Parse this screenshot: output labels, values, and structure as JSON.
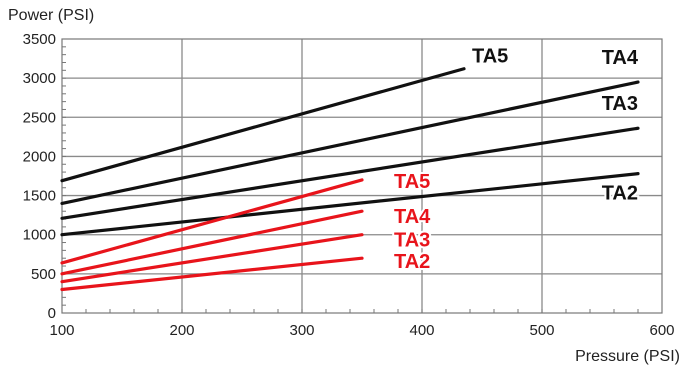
{
  "chart_data": {
    "type": "line",
    "xlabel": "Pressure (PSI)",
    "ylabel": "Power (PSI)",
    "xlim": [
      100,
      600
    ],
    "ylim": [
      0,
      3500
    ],
    "x_ticks": [
      100,
      200,
      300,
      400,
      500,
      600
    ],
    "y_ticks": [
      0,
      500,
      1000,
      1500,
      2000,
      2500,
      3000,
      3500
    ],
    "grid": true,
    "legend": "none",
    "series": [
      {
        "name": "TA5",
        "color": "#111111",
        "x": [
          100,
          435
        ],
        "y": [
          1690,
          3120
        ]
      },
      {
        "name": "TA4",
        "color": "#111111",
        "x": [
          100,
          580
        ],
        "y": [
          1400,
          2950
        ]
      },
      {
        "name": "TA3",
        "color": "#111111",
        "x": [
          100,
          580
        ],
        "y": [
          1210,
          2360
        ]
      },
      {
        "name": "TA2",
        "color": "#111111",
        "x": [
          100,
          580
        ],
        "y": [
          1000,
          1780
        ]
      },
      {
        "name": "TA5",
        "color": "#e8141b",
        "x": [
          100,
          350
        ],
        "y": [
          640,
          1700
        ]
      },
      {
        "name": "TA4",
        "color": "#e8141b",
        "x": [
          100,
          350
        ],
        "y": [
          500,
          1300
        ]
      },
      {
        "name": "TA3",
        "color": "#e8141b",
        "x": [
          100,
          350
        ],
        "y": [
          400,
          1000
        ]
      },
      {
        "name": "TA2",
        "color": "#e8141b",
        "x": [
          100,
          350
        ],
        "y": [
          300,
          700
        ]
      }
    ]
  }
}
